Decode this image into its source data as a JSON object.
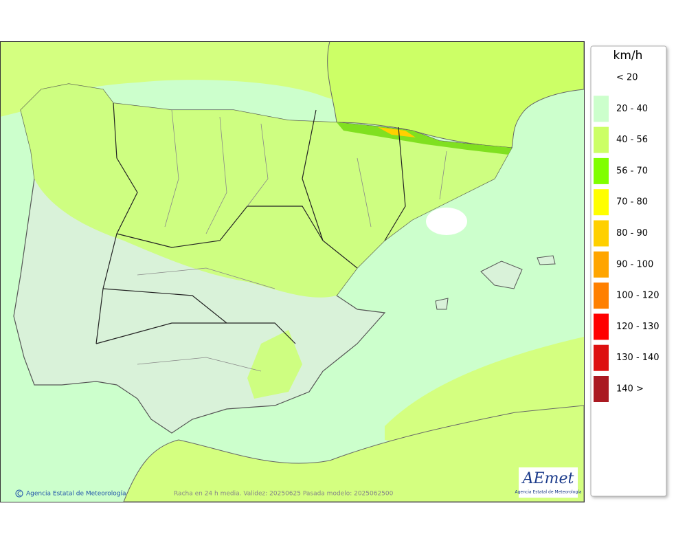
{
  "legend": {
    "title": "km/h",
    "items": [
      {
        "label": "< 20",
        "color": "#ffffff"
      },
      {
        "label": "20 - 40",
        "color": "#ccffcc"
      },
      {
        "label": "40 - 56",
        "color": "#ccff66"
      },
      {
        "label": "56 - 70",
        "color": "#80ff00"
      },
      {
        "label": "70 - 80",
        "color": "#ffff00"
      },
      {
        "label": "80 - 90",
        "color": "#ffd000"
      },
      {
        "label": "90 - 100",
        "color": "#ffa500"
      },
      {
        "label": "100 - 120",
        "color": "#ff8000"
      },
      {
        "label": "120 - 130",
        "color": "#ff0000"
      },
      {
        "label": "130 - 140",
        "color": "#dd1010"
      },
      {
        "label": "140 >",
        "color": "#aa1a22"
      }
    ]
  },
  "footer": {
    "copyright": "Agencia Estatal de Meteorología",
    "caption": "Racha en 24 h media. Validez: 20250625 Pasada modelo: 2025062500"
  },
  "logo": {
    "name": "AEmet",
    "subtitle": "Agencia Estatal de Meteorología"
  }
}
